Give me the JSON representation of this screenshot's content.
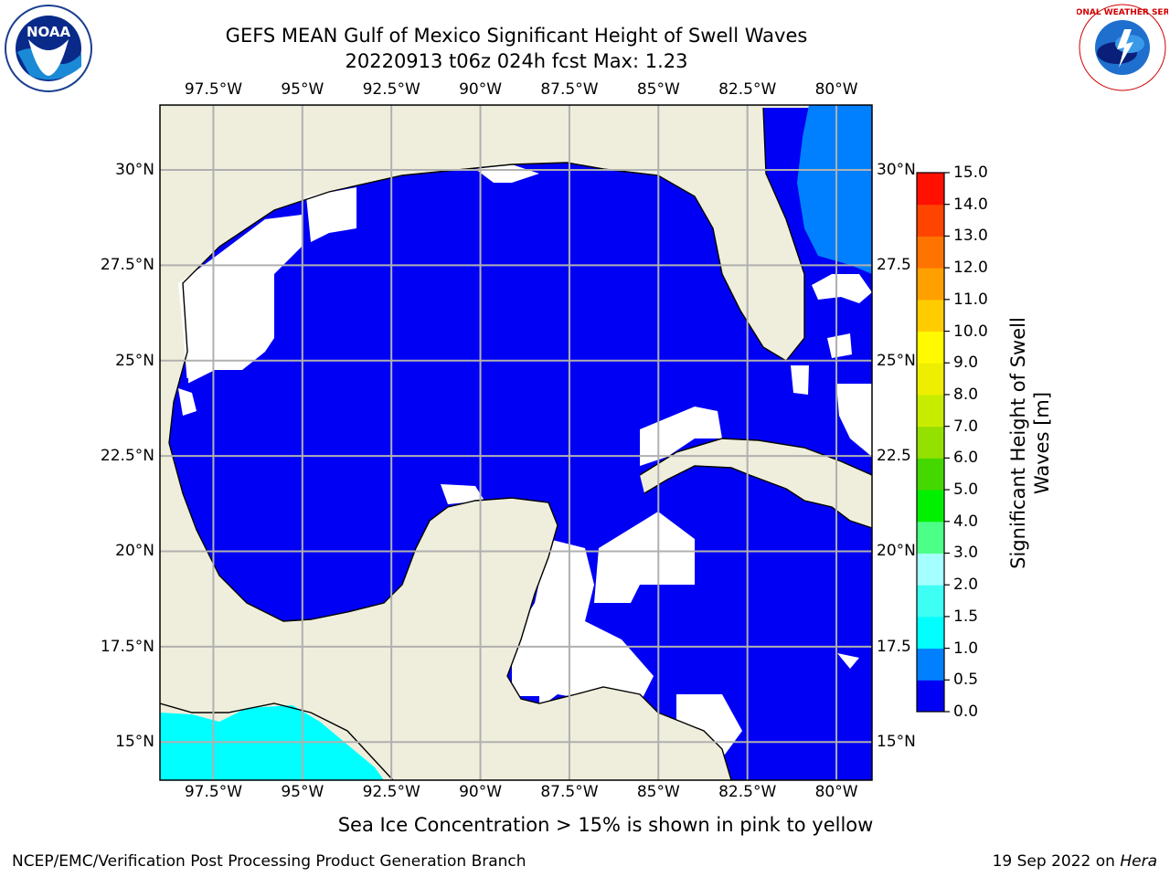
{
  "title": {
    "line1": "GEFS MEAN Gulf of Mexico Significant Height of Swell Waves",
    "line2": "20220913 t06z 024h fcst   Max: 1.23"
  },
  "logos": {
    "noaa_text": "NOAA",
    "nws_text": "NATIONAL WEATHER SERVICE"
  },
  "map": {
    "lon_range": [
      -99.0,
      -79.0
    ],
    "lat_range": [
      14.0,
      31.7
    ],
    "top_lon_labels": [
      "97.5°W",
      "95°W",
      "92.5°W",
      "90°W",
      "87.5°W",
      "85°W",
      "82.5°W",
      "80°W"
    ],
    "bottom_lon_labels": [
      "97.5°W",
      "95°W",
      "92.5°W",
      "90°W",
      "87.5°W",
      "85°W",
      "82.5°W",
      "80°W"
    ],
    "left_lat_labels": [
      "30°N",
      "27.5°N",
      "25°N",
      "22.5°N",
      "20°N",
      "17.5°N",
      "15°N"
    ],
    "right_lat_labels": [
      "30°N",
      "27.5",
      "25°N",
      "22.5",
      "20°N",
      "17.5",
      "15°N"
    ],
    "grid_lons": [
      -97.5,
      -95,
      -92.5,
      -90,
      -87.5,
      -85,
      -82.5,
      -80
    ],
    "grid_lats": [
      30,
      27.5,
      25,
      22.5,
      20,
      17.5,
      15
    ],
    "colors": {
      "land": "#efeedc",
      "water_low": "#0000f5",
      "water_mid": "#0080ff",
      "cyan": "#00ffff",
      "no_data": "#ffffff",
      "grid": "#b0b0b0",
      "coast": "#000000"
    }
  },
  "colorbar": {
    "label": "Significant Height of Swell Waves [m]",
    "ticks": [
      "0.0",
      "0.5",
      "1.0",
      "1.5",
      "2.0",
      "3.0",
      "4.0",
      "5.0",
      "6.0",
      "7.0",
      "8.0",
      "9.0",
      "10.0",
      "11.0",
      "12.0",
      "13.0",
      "14.0",
      "15.0"
    ],
    "colors": [
      "#0000f5",
      "#0080ff",
      "#00ffff",
      "#3dfff3",
      "#a6ffff",
      "#4cff86",
      "#00f000",
      "#44d800",
      "#94e000",
      "#c8ec00",
      "#eeee00",
      "#fffa00",
      "#ffcc00",
      "#ffa000",
      "#ff7400",
      "#ff4400",
      "#ff1000"
    ]
  },
  "subtitle": "Sea Ice Concentration > 15% is shown in pink to yellow",
  "footer": {
    "left": "NCEP/EMC/Verification Post Processing Product Generation Branch",
    "right_prefix": "19 Sep 2022 on ",
    "right_host": "Hera"
  }
}
